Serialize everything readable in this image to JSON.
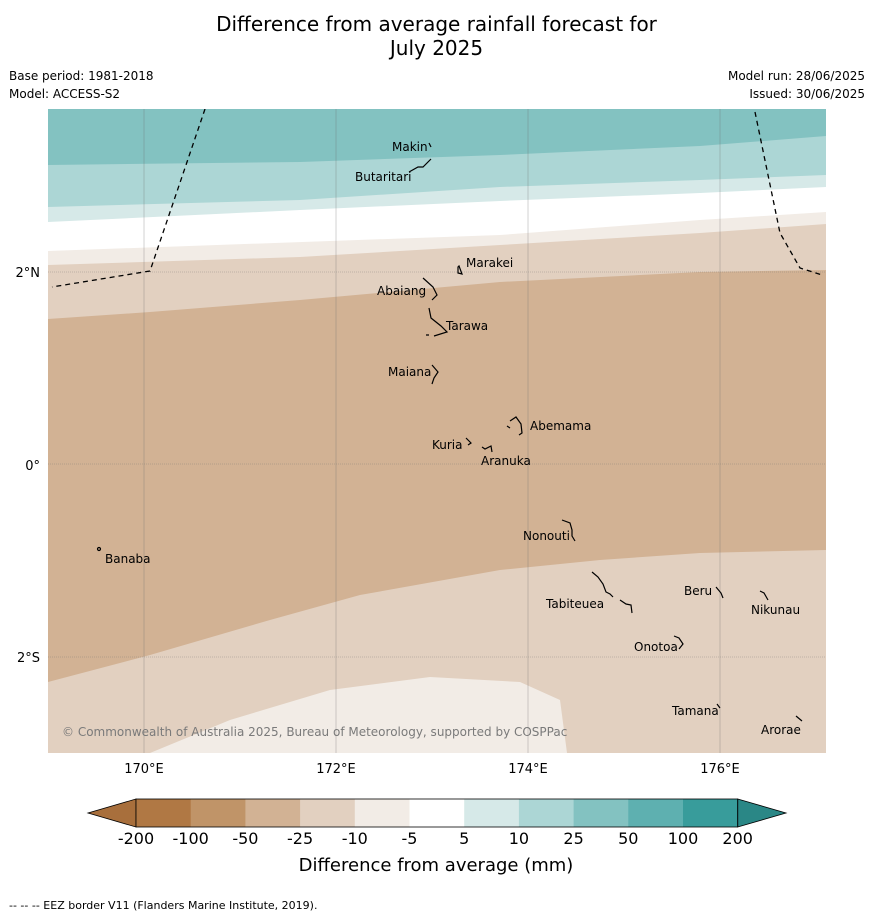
{
  "title_line1": "Difference from average rainfall forecast for",
  "title_line2": "July 2025",
  "base_period": "Base period: 1981-2018",
  "model": "Model: ACCESS-S2",
  "model_run": "Model run: 28/06/2025",
  "issued": "Issued: 30/06/2025",
  "copyright": "© Commonwealth of Australia 2025, Bureau of Meteorology, supported by COSPPac",
  "footnote": "-- -- -- EEZ border V11 (Flanders Marine Institute, 2019).",
  "lat_labels": [
    "2°N",
    "0°",
    "2°S"
  ],
  "lon_labels": [
    "170°E",
    "172°E",
    "174°E",
    "176°E"
  ],
  "places": {
    "makin": "Makin",
    "butaritari": "Butaritari",
    "marakei": "Marakei",
    "abaiang": "Abaiang",
    "tarawa": "Tarawa",
    "maiana": "Maiana",
    "abemama": "Abemama",
    "kuria": "Kuria",
    "aranuka": "Aranuka",
    "nonouti": "Nonouti",
    "banaba": "Banaba",
    "beru": "Beru",
    "nikunau": "Nikunau",
    "tabiteuea": "Tabiteuea",
    "onotoa": "Onotoa",
    "tamana": "Tamana",
    "arorae": "Arorae"
  },
  "colorbar": {
    "ticks": [
      "-200",
      "-100",
      "-50",
      "-25",
      "-10",
      "-5",
      "5",
      "10",
      "25",
      "50",
      "100",
      "200"
    ],
    "colors": [
      "#a86f3c",
      "#b07844",
      "#c09468",
      "#d2b294",
      "#e2d0c0",
      "#f2ece6",
      "#ffffff",
      "#d6e9e8",
      "#acd6d5",
      "#83c2c1",
      "#5eb0b0",
      "#389c9b",
      "#2a8786"
    ],
    "label": "Difference from average (mm)"
  },
  "bands": {
    "c100": "#83c2c1",
    "c50": "#acd6d5",
    "c25": "#d6e9e8",
    "c0": "#ffffff",
    "cm5": "#f2ece6",
    "cm10": "#e2d0c0",
    "cm25": "#d2b294"
  }
}
